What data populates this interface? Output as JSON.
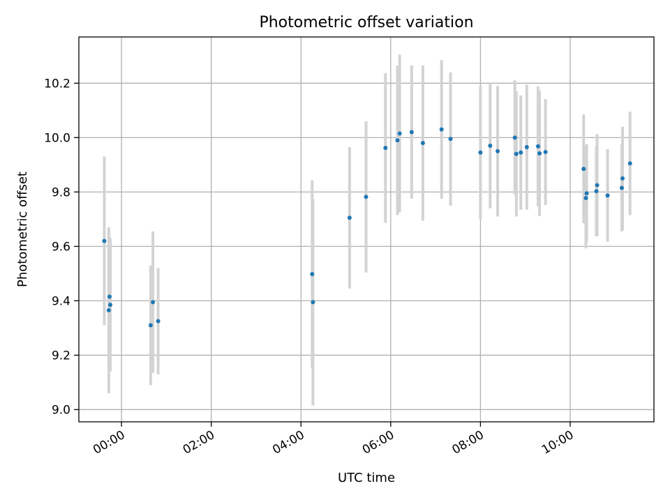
{
  "chart_data": {
    "type": "scatter",
    "title": "Photometric offset variation",
    "xlabel": "UTC time",
    "ylabel": "Photometric offset",
    "xlim": [
      "-00:57",
      "11:52"
    ],
    "ylim": [
      8.955,
      10.37
    ],
    "x_ticks": [
      "00:00",
      "02:00",
      "04:00",
      "06:00",
      "08:00",
      "10:00"
    ],
    "y_ticks": [
      "9.0",
      "9.2",
      "9.4",
      "9.6",
      "9.8",
      "10.0",
      "10.2"
    ],
    "grid": true,
    "colors": {
      "point": "#1f77b4",
      "errorbar": "#d3d3d3",
      "grid": "#b0b0b0"
    },
    "points": [
      {
        "x": "-00:23",
        "y": 9.62,
        "yerr": 0.31
      },
      {
        "x": "-00:17",
        "y": 9.365,
        "yerr": 0.305
      },
      {
        "x": "-00:16",
        "y": 9.415,
        "yerr": 0.22
      },
      {
        "x": "-00:15",
        "y": 9.385,
        "yerr": 0.245
      },
      {
        "x": "00:39",
        "y": 9.31,
        "yerr": 0.22
      },
      {
        "x": "00:42",
        "y": 9.395,
        "yerr": 0.26
      },
      {
        "x": "00:49",
        "y": 9.325,
        "yerr": 0.195
      },
      {
        "x": "04:15",
        "y": 9.498,
        "yerr": 0.345
      },
      {
        "x": "04:16",
        "y": 9.395,
        "yerr": 0.38
      },
      {
        "x": "05:05",
        "y": 9.705,
        "yerr": 0.26
      },
      {
        "x": "05:27",
        "y": 9.782,
        "yerr": 0.278
      },
      {
        "x": "05:53",
        "y": 9.962,
        "yerr": 0.275
      },
      {
        "x": "06:09",
        "y": 9.99,
        "yerr": 0.275
      },
      {
        "x": "06:12",
        "y": 10.015,
        "yerr": 0.29
      },
      {
        "x": "06:28",
        "y": 10.02,
        "yerr": 0.245
      },
      {
        "x": "06:43",
        "y": 9.98,
        "yerr": 0.285
      },
      {
        "x": "07:08",
        "y": 10.03,
        "yerr": 0.255
      },
      {
        "x": "07:20",
        "y": 9.995,
        "yerr": 0.245
      },
      {
        "x": "08:00",
        "y": 9.945,
        "yerr": 0.245
      },
      {
        "x": "08:13",
        "y": 9.97,
        "yerr": 0.23
      },
      {
        "x": "08:23",
        "y": 9.95,
        "yerr": 0.24
      },
      {
        "x": "08:46",
        "y": 10.0,
        "yerr": 0.21
      },
      {
        "x": "08:48",
        "y": 9.94,
        "yerr": 0.23
      },
      {
        "x": "08:54",
        "y": 9.945,
        "yerr": 0.21
      },
      {
        "x": "09:02",
        "y": 9.965,
        "yerr": 0.23
      },
      {
        "x": "09:17",
        "y": 9.968,
        "yerr": 0.22
      },
      {
        "x": "09:19",
        "y": 9.942,
        "yerr": 0.23
      },
      {
        "x": "09:27",
        "y": 9.947,
        "yerr": 0.195
      },
      {
        "x": "10:18",
        "y": 9.885,
        "yerr": 0.2
      },
      {
        "x": "10:21",
        "y": 9.778,
        "yerr": 0.185
      },
      {
        "x": "10:22",
        "y": 9.795,
        "yerr": 0.18
      },
      {
        "x": "10:35",
        "y": 9.803,
        "yerr": 0.165
      },
      {
        "x": "10:36",
        "y": 9.825,
        "yerr": 0.188
      },
      {
        "x": "10:50",
        "y": 9.787,
        "yerr": 0.17
      },
      {
        "x": "11:09",
        "y": 9.815,
        "yerr": 0.16
      },
      {
        "x": "11:10",
        "y": 9.85,
        "yerr": 0.19
      },
      {
        "x": "11:20",
        "y": 9.905,
        "yerr": 0.19
      }
    ]
  }
}
